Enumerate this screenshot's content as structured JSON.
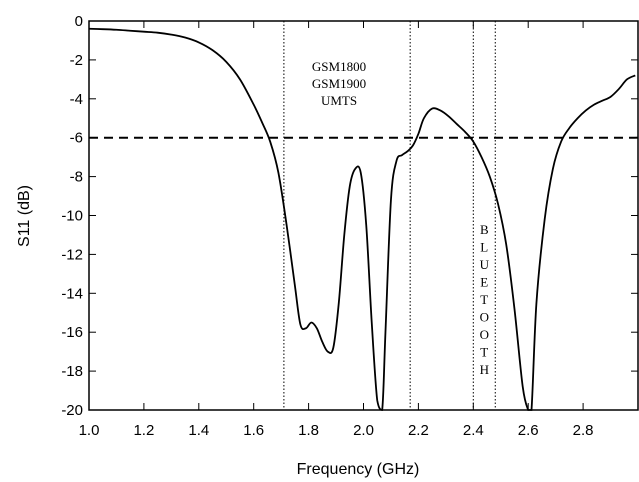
{
  "chart_data": {
    "type": "line",
    "title": "",
    "xlabel": "Frequency (GHz)",
    "ylabel": "S11 (dB)",
    "xlim": [
      1.0,
      3.0
    ],
    "ylim": [
      -20,
      0
    ],
    "x_ticks": [
      1.0,
      1.2,
      1.4,
      1.6,
      1.8,
      2.0,
      2.2,
      2.4,
      2.6,
      2.8
    ],
    "x_tick_labels": [
      "1.0",
      "1.2",
      "1.4",
      "1.6",
      "1.8",
      "2.0",
      "2.2",
      "2.4",
      "2.6",
      "2.8"
    ],
    "y_ticks": [
      0,
      -2,
      -4,
      -6,
      -8,
      -10,
      -12,
      -14,
      -16,
      -18,
      -20
    ],
    "y_tick_labels": [
      "0",
      "-2",
      "-4",
      "-6",
      "-8",
      "-10",
      "-12",
      "-14",
      "-16",
      "-18",
      "-20"
    ],
    "grid": false,
    "series": [
      {
        "x": [
          1.0,
          1.05,
          1.1,
          1.15,
          1.2,
          1.25,
          1.3,
          1.35,
          1.4,
          1.45,
          1.5,
          1.55,
          1.6,
          1.63,
          1.66,
          1.69,
          1.72,
          1.75,
          1.77,
          1.79,
          1.81,
          1.83,
          1.85,
          1.87,
          1.89,
          1.91,
          1.93,
          1.95,
          1.97,
          1.99,
          2.01,
          2.03,
          2.05,
          2.068,
          2.08,
          2.1,
          2.12,
          2.14,
          2.16,
          2.18,
          2.2,
          2.22,
          2.25,
          2.28,
          2.31,
          2.34,
          2.37,
          2.4,
          2.43,
          2.46,
          2.49,
          2.52,
          2.55,
          2.58,
          2.6,
          2.612,
          2.63,
          2.66,
          2.69,
          2.72,
          2.75,
          2.78,
          2.81,
          2.84,
          2.87,
          2.9,
          2.93,
          2.96,
          2.99
        ],
        "y": [
          -0.4,
          -0.42,
          -0.45,
          -0.5,
          -0.55,
          -0.6,
          -0.7,
          -0.85,
          -1.1,
          -1.5,
          -2.1,
          -3.0,
          -4.3,
          -5.2,
          -6.2,
          -7.8,
          -10.5,
          -13.6,
          -15.6,
          -15.8,
          -15.5,
          -15.8,
          -16.5,
          -17.0,
          -16.8,
          -14.5,
          -11.0,
          -8.5,
          -7.6,
          -7.8,
          -10.5,
          -15.5,
          -19.5,
          -20.0,
          -16.0,
          -9.2,
          -7.2,
          -6.9,
          -6.7,
          -6.4,
          -5.8,
          -5.0,
          -4.5,
          -4.6,
          -4.9,
          -5.3,
          -5.7,
          -6.2,
          -7.0,
          -8.0,
          -9.4,
          -11.5,
          -14.8,
          -18.8,
          -20.0,
          -20.0,
          -14.5,
          -10.2,
          -7.6,
          -6.2,
          -5.5,
          -5.0,
          -4.6,
          -4.3,
          -4.1,
          -3.9,
          -3.5,
          -3.0,
          -2.8
        ]
      }
    ],
    "reference_line": {
      "y": -6,
      "style": "dashed"
    },
    "band_markers": [
      1.71,
      2.17,
      2.4,
      2.48
    ],
    "annotations": {
      "upper_band": [
        "GSM1800",
        "GSM1900",
        "UMTS"
      ],
      "bluetooth_letters": [
        "B",
        "L",
        "U",
        "E",
        "T",
        "O",
        "O",
        "T",
        "H"
      ]
    }
  }
}
